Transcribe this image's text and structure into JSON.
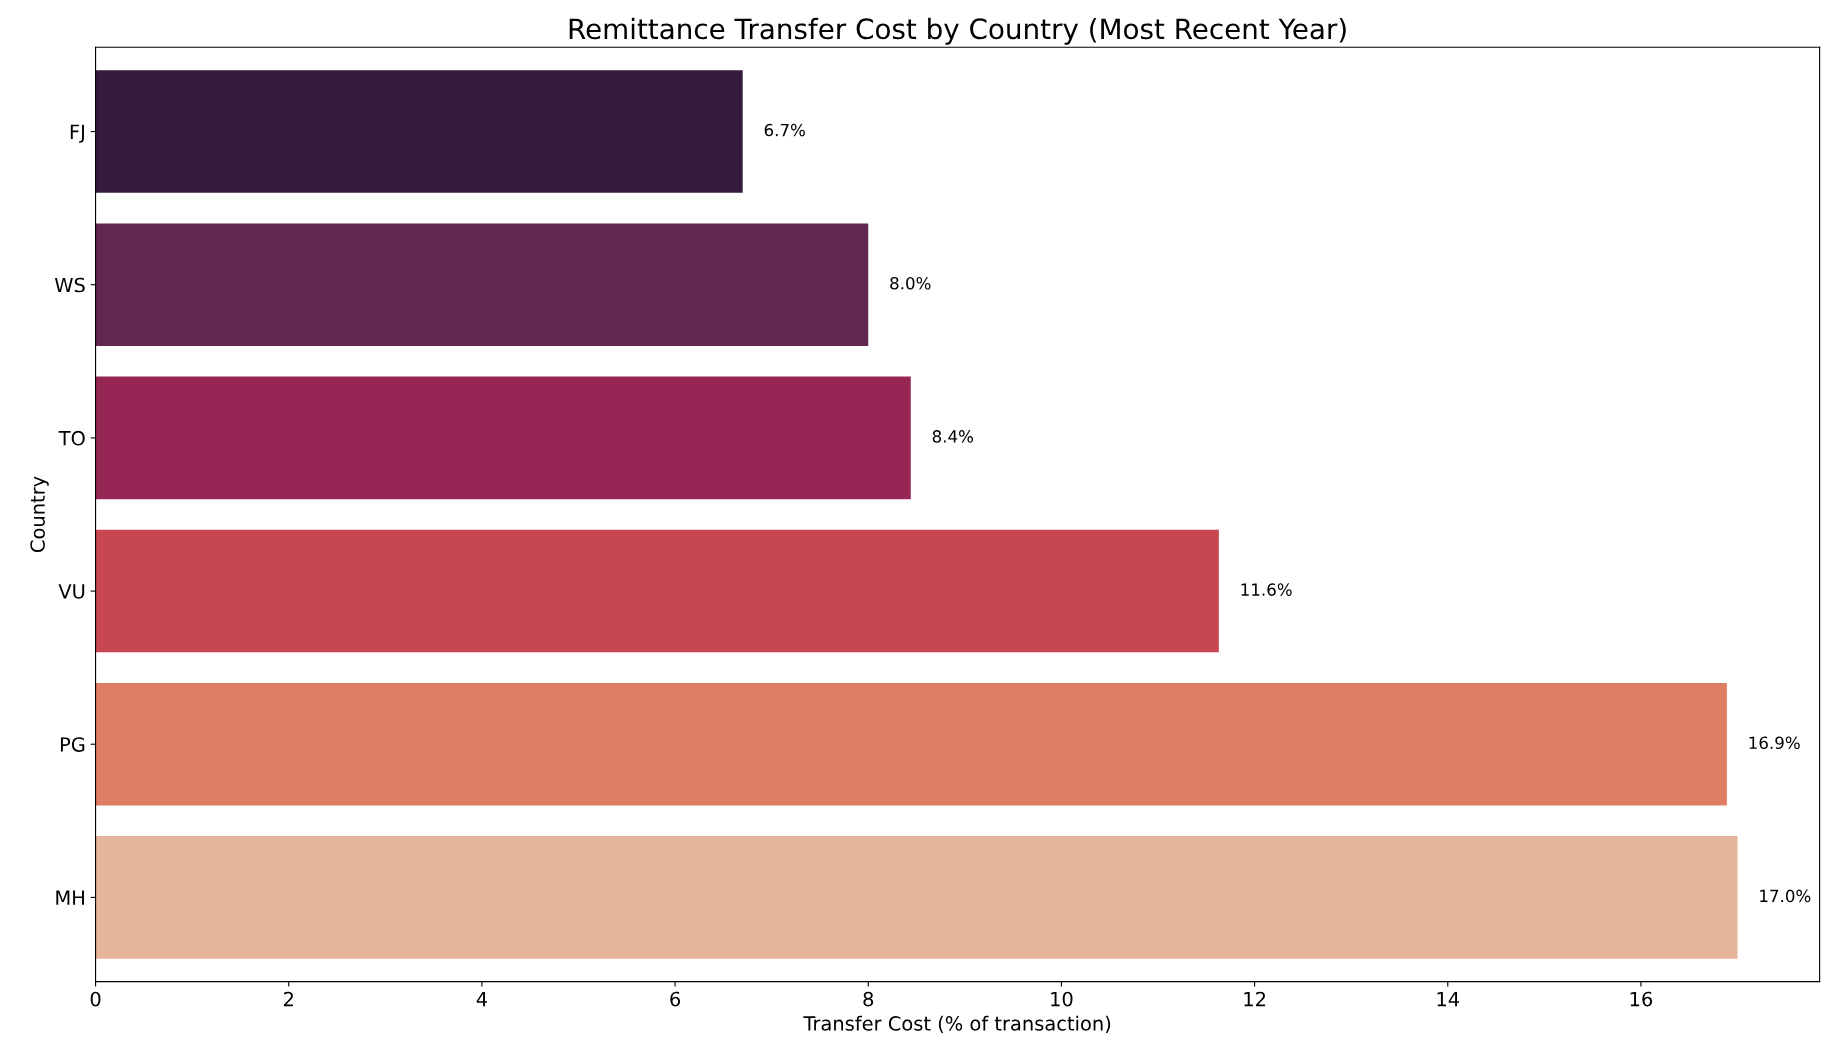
{
  "chart_data": {
    "type": "bar",
    "orientation": "horizontal",
    "title": "Remittance Transfer Cost by Country (Most Recent Year)",
    "xlabel": "Transfer Cost (% of transaction)",
    "ylabel": "Country",
    "categories": [
      "FJ",
      "WS",
      "TO",
      "VU",
      "PG",
      "MH"
    ],
    "values": [
      6.7,
      8.0,
      8.44,
      11.63,
      16.89,
      17.0
    ],
    "value_labels": [
      "6.7%",
      "8.0%",
      "8.4%",
      "11.6%",
      "16.9%",
      "17.0%"
    ],
    "colors": [
      "#35193e",
      "#62264f",
      "#962653",
      "#c8464f",
      "#df7c64",
      "#e6b49a"
    ],
    "xlim": [
      0,
      17.85
    ],
    "xticks": [
      0,
      2,
      4,
      6,
      8,
      10,
      12,
      14,
      16
    ],
    "grid": false
  }
}
